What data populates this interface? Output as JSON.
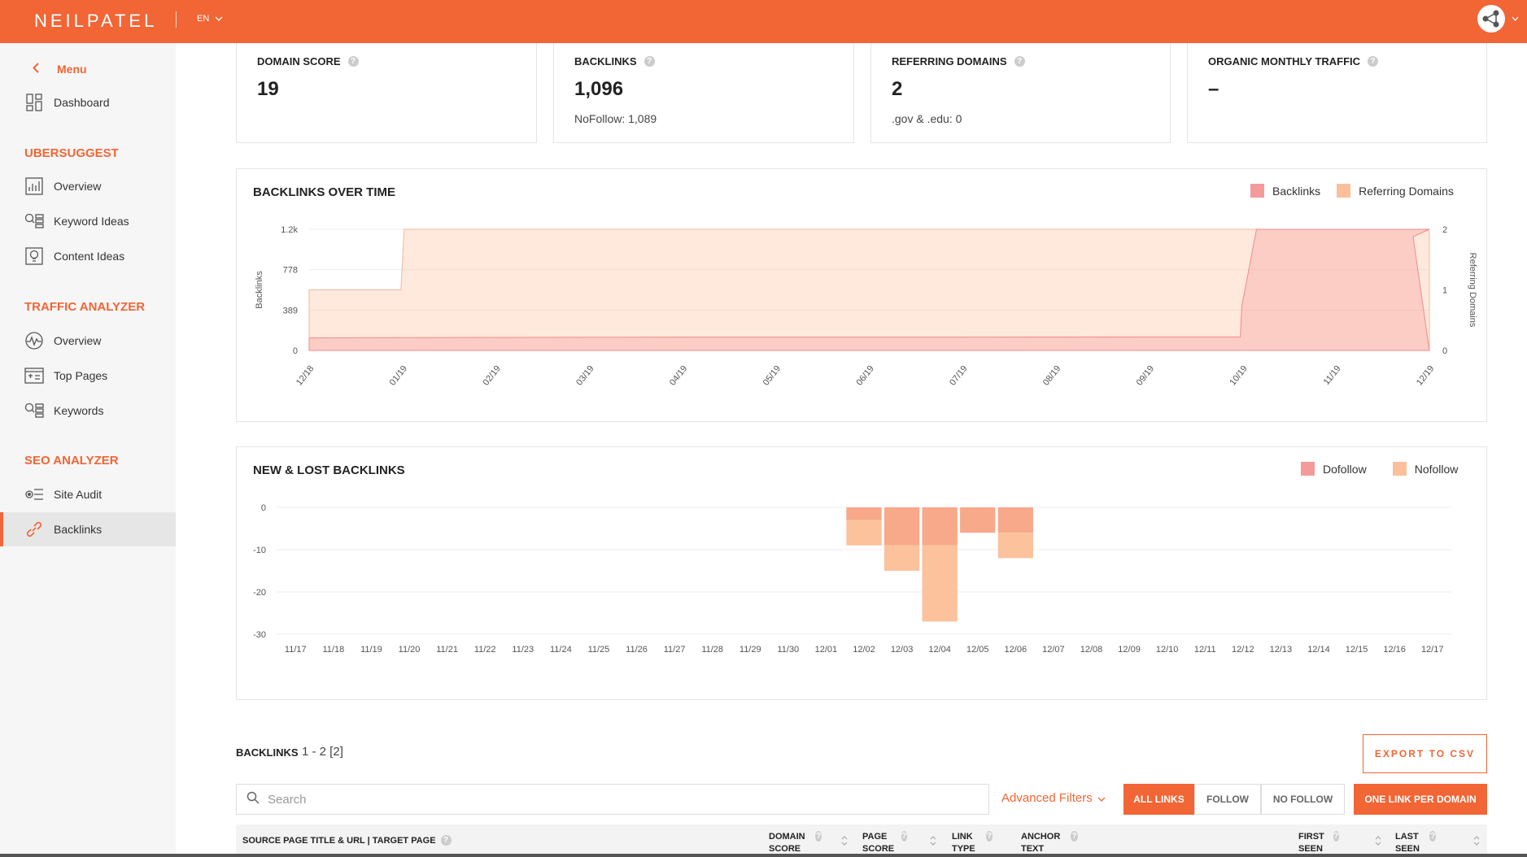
{
  "header": {
    "logo": "NEILPATEL",
    "lang": "EN"
  },
  "sidebar": {
    "menu_label": "Menu",
    "dashboard": "Dashboard",
    "sections": [
      {
        "title": "UBERSUGGEST",
        "items": [
          "Overview",
          "Keyword Ideas",
          "Content Ideas"
        ]
      },
      {
        "title": "TRAFFIC ANALYZER",
        "items": [
          "Overview",
          "Top Pages",
          "Keywords"
        ]
      },
      {
        "title": "SEO ANALYZER",
        "items": [
          "Site Audit",
          "Backlinks"
        ]
      }
    ],
    "active_item": "Backlinks"
  },
  "cards": [
    {
      "title": "DOMAIN SCORE",
      "value": "19",
      "sub": ""
    },
    {
      "title": "BACKLINKS",
      "value": "1,096",
      "sub": "NoFollow: 1,089"
    },
    {
      "title": "REFERRING DOMAINS",
      "value": "2",
      "sub": ".gov & .edu: 0"
    },
    {
      "title": "ORGANIC MONTHLY TRAFFIC",
      "value": "–",
      "sub": ""
    }
  ],
  "backlinks_chart": {
    "title": "BACKLINKS OVER TIME",
    "legend": [
      "Backlinks",
      "Referring Domains"
    ]
  },
  "new_lost_chart": {
    "title": "NEW & LOST BACKLINKS",
    "legend": [
      "Dofollow",
      "Nofollow"
    ]
  },
  "chart_data": [
    {
      "type": "area",
      "title": "BACKLINKS OVER TIME",
      "ylabel": "Backlinks",
      "y2label": "Referring Domains",
      "yticks": [
        "0",
        "389",
        "778",
        "1.2k"
      ],
      "y2ticks": [
        "0",
        "1",
        "2"
      ],
      "ylim": [
        0,
        1167
      ],
      "y2lim": [
        0,
        2
      ],
      "x_labels": [
        "12/18",
        "01/19",
        "02/19",
        "03/19",
        "04/19",
        "05/19",
        "06/19",
        "07/19",
        "08/19",
        "09/19",
        "10/19",
        "11/19",
        "12/19"
      ],
      "series": [
        {
          "name": "Backlinks",
          "color": "#f59a9a",
          "points": [
            [
              "12/18",
              120
            ],
            [
              "01/19",
              123
            ],
            [
              "02/19",
              125
            ],
            [
              "03/19",
              127
            ],
            [
              "04/19",
              128
            ],
            [
              "05/19",
              128
            ],
            [
              "06/19",
              128
            ],
            [
              "07/19",
              128
            ],
            [
              "08/19",
              129
            ],
            [
              "09/19",
              130
            ],
            [
              "10/19",
              130
            ],
            [
              "10/19",
              430
            ],
            [
              "10/19",
              1167
            ],
            [
              "11/19",
              1167
            ],
            [
              "12/19",
              1167
            ],
            [
              "12/19",
              1096
            ]
          ]
        },
        {
          "name": "Referring Domains",
          "color": "#fbbf9c",
          "points": [
            [
              "12/18",
              1
            ],
            [
              "01/19",
              1
            ],
            [
              "01/19",
              2
            ],
            [
              "12/19",
              2
            ]
          ]
        }
      ]
    },
    {
      "type": "bar",
      "title": "NEW & LOST BACKLINKS",
      "yticks": [
        "0",
        "-10",
        "-20",
        "-30"
      ],
      "ylim": [
        -30,
        0
      ],
      "categories": [
        "11/17",
        "11/18",
        "11/19",
        "11/20",
        "11/21",
        "11/22",
        "11/23",
        "11/24",
        "11/25",
        "11/26",
        "11/27",
        "11/28",
        "11/29",
        "11/30",
        "12/01",
        "12/02",
        "12/03",
        "12/04",
        "12/05",
        "12/06",
        "12/07",
        "12/08",
        "12/09",
        "12/10",
        "12/11",
        "12/12",
        "12/13",
        "12/14",
        "12/15",
        "12/16",
        "12/17"
      ],
      "series": [
        {
          "name": "Dofollow",
          "color": "#f7a98a",
          "values": [
            0,
            0,
            0,
            0,
            0,
            0,
            0,
            0,
            0,
            0,
            0,
            0,
            0,
            0,
            0,
            -3,
            -9,
            -9,
            -6,
            -6,
            0,
            0,
            0,
            0,
            0,
            0,
            0,
            0,
            0,
            0,
            0
          ]
        },
        {
          "name": "Nofollow",
          "color": "#fcc29c",
          "values": [
            0,
            0,
            0,
            0,
            0,
            0,
            0,
            0,
            0,
            0,
            0,
            0,
            0,
            0,
            0,
            -6,
            -6,
            -18,
            0,
            -6,
            0,
            0,
            0,
            0,
            0,
            0,
            0,
            0,
            0,
            0,
            0
          ]
        }
      ]
    }
  ],
  "table": {
    "title": "BACKLINKS",
    "range": "1 - 2 [2]",
    "export_label": "EXPORT TO CSV",
    "search_placeholder": "Search",
    "advanced_filters": "Advanced Filters",
    "filters": [
      "ALL LINKS",
      "FOLLOW",
      "NO FOLLOW"
    ],
    "one_link": "ONE LINK PER DOMAIN",
    "columns": [
      "SOURCE PAGE TITLE & URL | TARGET PAGE",
      "DOMAIN SCORE",
      "PAGE SCORE",
      "LINK TYPE",
      "ANCHOR TEXT",
      "FIRST SEEN",
      "LAST SEEN"
    ]
  },
  "colors": {
    "brand": "#f26535",
    "backlinks": "#f59a9a",
    "referring": "#fbbf9c",
    "dofollow": "#f7a98a",
    "nofollow": "#fcc29c"
  }
}
